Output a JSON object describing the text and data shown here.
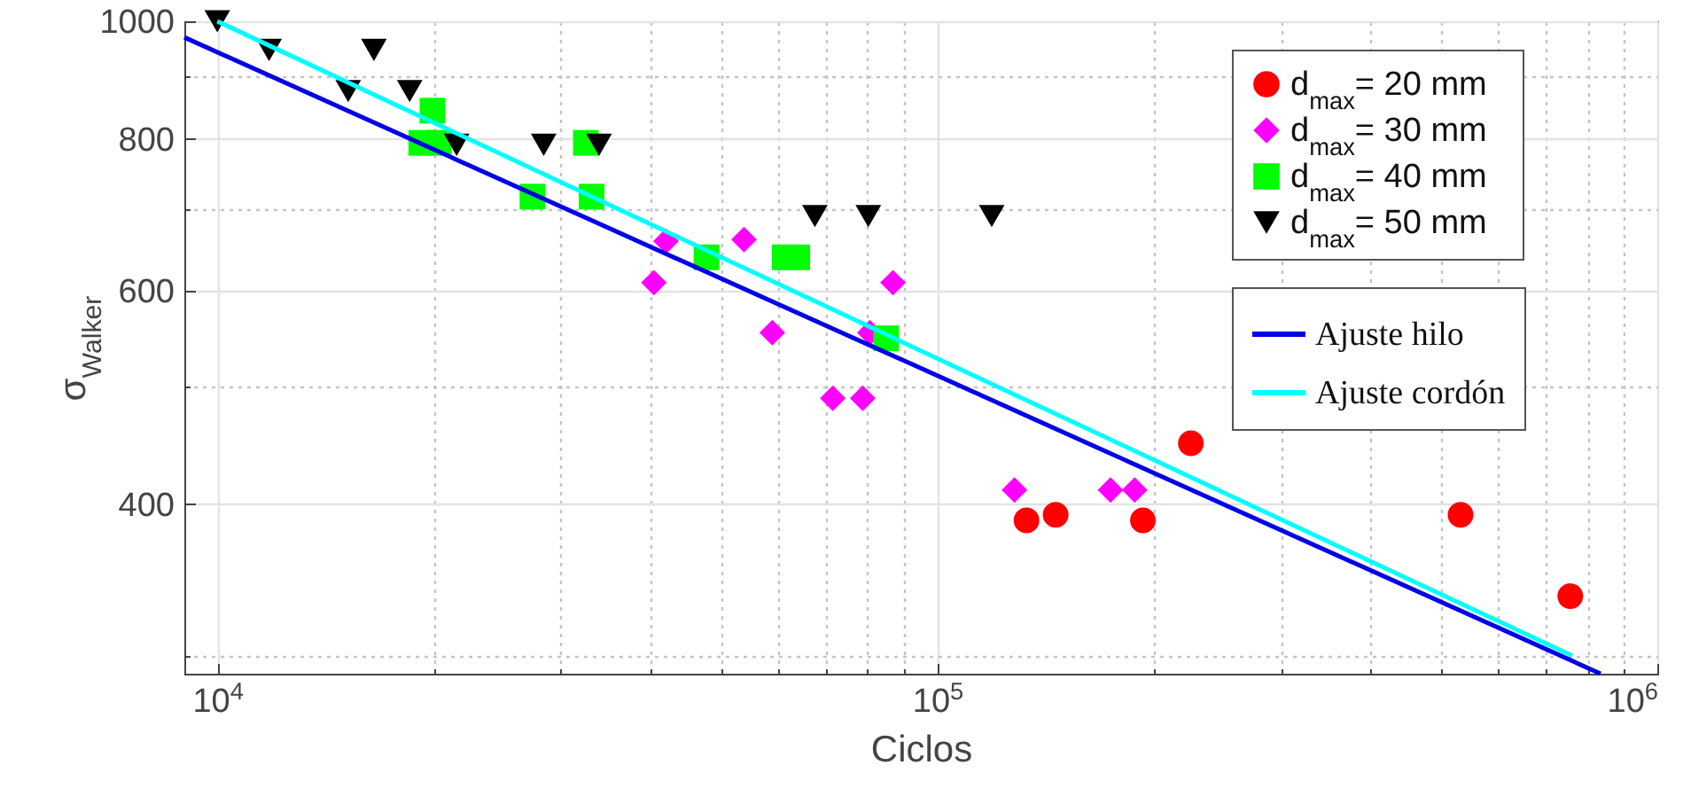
{
  "chart_data": {
    "type": "scatter",
    "xlabel": "Ciclos",
    "ylabel": "σ$_{Walker}$",
    "log": "xy",
    "grid": true,
    "legend": "top right",
    "xlim": [
      9000,
      1000000
    ],
    "ylim": [
      290,
      1000
    ],
    "xticks": [
      {
        "value": 10000,
        "label": "10$^{4}$"
      },
      {
        "value": 20000,
        "label": null
      },
      {
        "value": 30000,
        "label": null
      },
      {
        "value": 40000,
        "label": null
      },
      {
        "value": 50000,
        "label": null
      },
      {
        "value": 60000,
        "label": null
      },
      {
        "value": 70000,
        "label": null
      },
      {
        "value": 80000,
        "label": null
      },
      {
        "value": 90000,
        "label": null
      },
      {
        "value": 100000,
        "label": "10$^{5}$"
      },
      {
        "value": 200000,
        "label": null
      },
      {
        "value": 300000,
        "label": null
      },
      {
        "value": 400000,
        "label": null
      },
      {
        "value": 500000,
        "label": null
      },
      {
        "value": 600000,
        "label": null
      },
      {
        "value": 700000,
        "label": null
      },
      {
        "value": 800000,
        "label": null
      },
      {
        "value": 900000,
        "label": null
      },
      {
        "value": 1000000,
        "label": "10$^{6}$"
      }
    ],
    "yticks": [
      {
        "value": 300,
        "label": null
      },
      400,
      {
        "value": 500,
        "label": null
      },
      600,
      {
        "value": 700,
        "label": null
      },
      800,
      {
        "value": 900,
        "label": null
      },
      1000
    ],
    "series": [
      {
        "name": "d$_{max}$= 20 mm",
        "marker": "circle",
        "color": "#ff0000",
        "x": [
          133000,
          146000,
          193000,
          225000,
          533000,
          757000
        ],
        "values": [
          388,
          392,
          388,
          449,
          392,
          336
        ]
      },
      {
        "name": "d$_{max}$= 30 mm",
        "marker": "diamond",
        "color": "#ff00ff",
        "x": [
          40400,
          42000,
          53900,
          59000,
          71600,
          78800,
          80600,
          86800,
          128000,
          174000,
          188000
        ],
        "values": [
          609,
          659,
          661,
          554,
          489,
          489,
          554,
          609,
          411,
          411,
          411
        ]
      },
      {
        "name": "d$_{max}$= 40 mm",
        "marker": "square",
        "color": "#00ff00",
        "x": [
          19900,
          19200,
          20300,
          32500,
          27400,
          33100,
          47800,
          61400,
          63900,
          84900
        ],
        "values": [
          844,
          794,
          794,
          794,
          717,
          717,
          639,
          639,
          639,
          548
        ]
      },
      {
        "name": "d$_{max}$= 50 mm",
        "marker": "triangle-down",
        "color": "#000000",
        "x": [
          10000,
          11800,
          15200,
          16500,
          18500,
          21500,
          28400,
          33900,
          67600,
          80200,
          119000
        ],
        "values": [
          1000,
          947,
          876,
          947,
          876,
          791,
          791,
          791,
          691,
          691,
          691
        ]
      },
      {
        "name": "Ajuste hilo",
        "type": "line",
        "line_style": "solid",
        "color": "#0000e6",
        "x": [
          9000,
          834000
        ],
        "values": [
          970,
          290
        ]
      },
      {
        "name": "Ajuste cordón",
        "type": "line",
        "line_style": "solid",
        "color": "#00ffff",
        "x": [
          10000,
          762000
        ],
        "values": [
          1000,
          300
        ]
      }
    ]
  }
}
